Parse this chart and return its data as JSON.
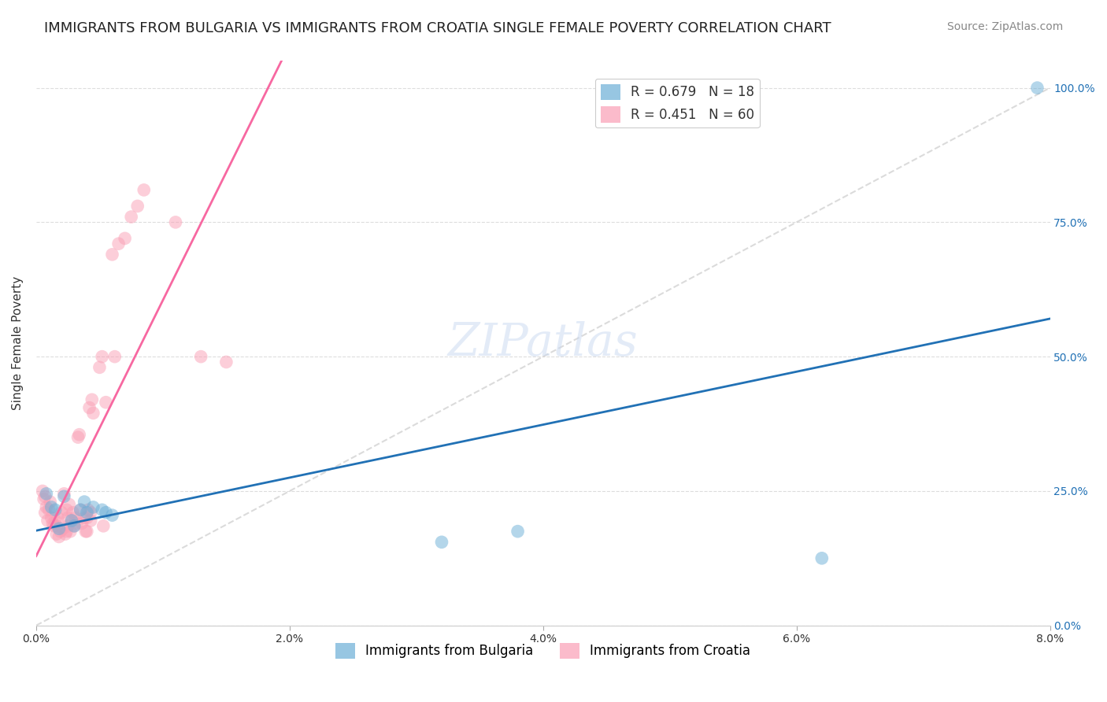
{
  "title": "IMMIGRANTS FROM BULGARIA VS IMMIGRANTS FROM CROATIA SINGLE FEMALE POVERTY CORRELATION CHART",
  "source": "Source: ZipAtlas.com",
  "ylabel": "Single Female Poverty",
  "legend_bulgaria": "R = 0.679   N = 18",
  "legend_croatia": "R = 0.451   N = 60",
  "bulgaria_color": "#6baed6",
  "croatia_color": "#fa9fb5",
  "regression_line_color_bulgaria": "#2171b5",
  "regression_line_color_croatia": "#f768a1",
  "diagonal_color": "#cccccc",
  "background_color": "#ffffff",
  "grid_color": "#dddddd",
  "bulgaria_x": [
    0.0008,
    0.0012,
    0.0015,
    0.0018,
    0.0022,
    0.0028,
    0.003,
    0.0035,
    0.0038,
    0.004,
    0.0045,
    0.0052,
    0.0055,
    0.006,
    0.032,
    0.038,
    0.062,
    0.079
  ],
  "bulgaria_y": [
    0.245,
    0.22,
    0.215,
    0.18,
    0.24,
    0.195,
    0.185,
    0.215,
    0.23,
    0.21,
    0.22,
    0.215,
    0.21,
    0.205,
    0.155,
    0.175,
    0.125,
    1.0
  ],
  "croatia_x": [
    0.0005,
    0.0006,
    0.0007,
    0.0007,
    0.0008,
    0.0009,
    0.001,
    0.0011,
    0.0012,
    0.0013,
    0.0014,
    0.0015,
    0.0016,
    0.0016,
    0.0017,
    0.0018,
    0.0019,
    0.002,
    0.0021,
    0.0022,
    0.0023,
    0.0024,
    0.0024,
    0.0025,
    0.0025,
    0.0026,
    0.0027,
    0.0028,
    0.0029,
    0.003,
    0.0031,
    0.0032,
    0.0033,
    0.0034,
    0.0035,
    0.0036,
    0.0038,
    0.0039,
    0.004,
    0.004,
    0.0041,
    0.0042,
    0.0043,
    0.0043,
    0.0044,
    0.0045,
    0.005,
    0.0052,
    0.0053,
    0.0055,
    0.006,
    0.0062,
    0.0065,
    0.007,
    0.0075,
    0.008,
    0.0085,
    0.011,
    0.013,
    0.015
  ],
  "croatia_y": [
    0.25,
    0.235,
    0.24,
    0.21,
    0.22,
    0.195,
    0.215,
    0.23,
    0.2,
    0.19,
    0.185,
    0.195,
    0.17,
    0.185,
    0.2,
    0.165,
    0.175,
    0.21,
    0.18,
    0.245,
    0.17,
    0.215,
    0.175,
    0.2,
    0.185,
    0.225,
    0.175,
    0.195,
    0.21,
    0.185,
    0.2,
    0.19,
    0.35,
    0.355,
    0.215,
    0.19,
    0.2,
    0.175,
    0.2,
    0.175,
    0.215,
    0.405,
    0.21,
    0.195,
    0.42,
    0.395,
    0.48,
    0.5,
    0.185,
    0.415,
    0.69,
    0.5,
    0.71,
    0.72,
    0.76,
    0.78,
    0.81,
    0.75,
    0.5,
    0.49
  ],
  "xlim": [
    0.0,
    0.08
  ],
  "ylim": [
    0.0,
    1.05
  ],
  "yticks": [
    0.0,
    0.25,
    0.5,
    0.75,
    1.0
  ],
  "xticks": [
    0.0,
    0.02,
    0.04,
    0.06,
    0.08
  ],
  "title_fontsize": 13,
  "source_fontsize": 10,
  "axis_label_fontsize": 11,
  "tick_fontsize": 10,
  "legend_fontsize": 12,
  "marker_size": 12,
  "marker_alpha": 0.5,
  "line_width": 2.0
}
